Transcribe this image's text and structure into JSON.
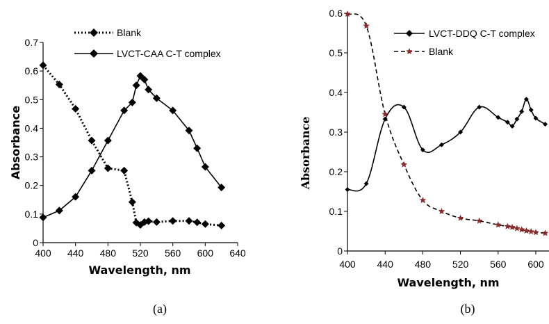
{
  "chart_data": [
    {
      "type": "line",
      "panel_label": "(a)",
      "xlabel": "Wavelength, nm",
      "ylabel": "Absorbance",
      "xlim": [
        400,
        640
      ],
      "ylim": [
        0,
        0.7
      ],
      "xticks": [
        400,
        440,
        480,
        520,
        560,
        600,
        640
      ],
      "yticks": [
        "0",
        "0.1",
        "0.2",
        "0.3",
        "0.4",
        "0.5",
        "0.6",
        "0.7"
      ],
      "legend_position": "top-left",
      "series": [
        {
          "name": "Blank",
          "style": "dotted",
          "marker": "diamond",
          "color": "#000000",
          "x": [
            400,
            420,
            440,
            460,
            480,
            500,
            510,
            515,
            520,
            525,
            530,
            540,
            560,
            580,
            590,
            600,
            620
          ],
          "y": [
            0.62,
            0.553,
            0.468,
            0.357,
            0.26,
            0.252,
            0.142,
            0.07,
            0.062,
            0.072,
            0.075,
            0.072,
            0.076,
            0.076,
            0.071,
            0.065,
            0.06
          ]
        },
        {
          "name": "LVCT-CAA C-T complex",
          "style": "solid",
          "marker": "diamond",
          "color": "#000000",
          "x": [
            400,
            420,
            440,
            460,
            480,
            500,
            510,
            515,
            520,
            525,
            530,
            540,
            560,
            580,
            590,
            600,
            620
          ],
          "y": [
            0.088,
            0.112,
            0.16,
            0.252,
            0.357,
            0.462,
            0.49,
            0.55,
            0.583,
            0.57,
            0.535,
            0.505,
            0.462,
            0.392,
            0.33,
            0.265,
            0.193
          ]
        }
      ]
    },
    {
      "type": "line",
      "panel_label": "(b)",
      "xlabel": "Wavelength, nm",
      "ylabel": "Absorbance",
      "xlim": [
        400,
        610
      ],
      "ylim": [
        0,
        0.6
      ],
      "xticks": [
        400,
        440,
        480,
        520,
        560,
        600
      ],
      "yticks": [
        "0",
        "0.1",
        "0.2",
        "0.3",
        "0.4",
        "0.5",
        "0.6"
      ],
      "legend_position": "top-right",
      "series": [
        {
          "name": "LVCT-DDQ C-T complex",
          "style": "solid-smooth",
          "marker": "diamond",
          "color": "#000000",
          "x": [
            400,
            420,
            440,
            460,
            480,
            500,
            520,
            540,
            560,
            570,
            575,
            580,
            585,
            590,
            595,
            600,
            610
          ],
          "y": [
            0.155,
            0.17,
            0.333,
            0.363,
            0.255,
            0.268,
            0.3,
            0.363,
            0.337,
            0.325,
            0.315,
            0.333,
            0.352,
            0.383,
            0.356,
            0.335,
            0.32
          ]
        },
        {
          "name": "Blank",
          "style": "dashed",
          "marker": "star",
          "color": "#000000",
          "marker_color": "#8b2a2a",
          "x": [
            400,
            420,
            440,
            460,
            480,
            500,
            520,
            540,
            560,
            570,
            575,
            580,
            585,
            590,
            595,
            600,
            610
          ],
          "y": [
            0.598,
            0.568,
            0.345,
            0.218,
            0.128,
            0.1,
            0.083,
            0.076,
            0.066,
            0.062,
            0.06,
            0.057,
            0.054,
            0.051,
            0.049,
            0.047,
            0.045
          ]
        }
      ]
    }
  ]
}
